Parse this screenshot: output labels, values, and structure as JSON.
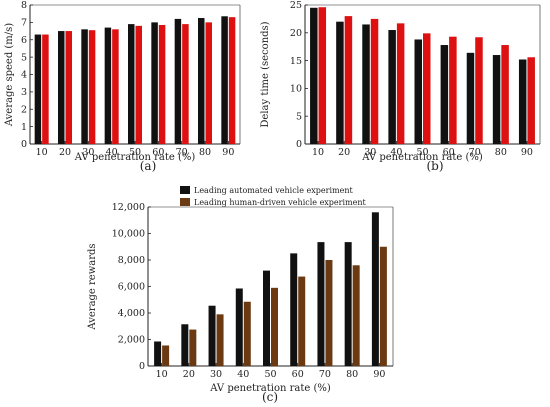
{
  "figure_labels": [
    "(a)",
    "(b)",
    "(c)"
  ],
  "colors": {
    "black_series": "#111111",
    "red_series": "#dd1111",
    "olive_series": "#6b3a12"
  },
  "chart_data": [
    {
      "id": "a",
      "type": "bar",
      "xlabel": "AV penetration rate (%)",
      "ylabel": "Average speed (m/s)",
      "categories": [
        "10",
        "20",
        "30",
        "40",
        "50",
        "60",
        "70",
        "80",
        "90"
      ],
      "ylim": [
        0,
        8
      ],
      "yticks": [
        0,
        1,
        2,
        3,
        4,
        5,
        6,
        7,
        8
      ],
      "series": [
        {
          "values": [
            6.3,
            6.5,
            6.6,
            6.7,
            6.9,
            7.0,
            7.2,
            7.25,
            7.35
          ]
        },
        {
          "values": [
            6.3,
            6.5,
            6.55,
            6.6,
            6.8,
            6.85,
            6.9,
            7.0,
            7.3
          ]
        }
      ]
    },
    {
      "id": "b",
      "type": "bar",
      "xlabel": "AV penetration rate (%)",
      "ylabel": "Delay time (seconds)",
      "categories": [
        "10",
        "20",
        "30",
        "40",
        "50",
        "60",
        "70",
        "80",
        "90"
      ],
      "ylim": [
        0,
        25
      ],
      "yticks": [
        0,
        5,
        10,
        15,
        20,
        25
      ],
      "series": [
        {
          "values": [
            24.5,
            22.0,
            21.5,
            20.5,
            18.8,
            17.8,
            16.4,
            16.0,
            15.2
          ]
        },
        {
          "values": [
            24.6,
            23.0,
            22.5,
            21.7,
            19.9,
            19.3,
            19.2,
            17.8,
            15.6
          ]
        }
      ]
    },
    {
      "id": "c",
      "type": "bar",
      "xlabel": "AV penetration rate (%)",
      "ylabel": "Average rewards",
      "categories": [
        "10",
        "20",
        "30",
        "40",
        "50",
        "60",
        "70",
        "80",
        "90"
      ],
      "ylim": [
        0,
        12000
      ],
      "yticks": [
        0,
        2000,
        4000,
        6000,
        8000,
        10000,
        12000
      ],
      "ytick_labels": [
        "0",
        "2,000",
        "4,000",
        "6,000",
        "8,000",
        "10,000",
        "12,000"
      ],
      "legend": [
        "Leading automated vehicle experiment",
        "Leading human-driven vehicle experiment"
      ],
      "series": [
        {
          "name": "Leading automated vehicle experiment",
          "values": [
            1850,
            3150,
            4550,
            5850,
            7200,
            8500,
            9350,
            9350,
            11600
          ]
        },
        {
          "name": "Leading human-driven vehicle experiment",
          "values": [
            1550,
            2750,
            3900,
            4850,
            5900,
            6750,
            8000,
            7600,
            9000
          ]
        }
      ]
    }
  ]
}
